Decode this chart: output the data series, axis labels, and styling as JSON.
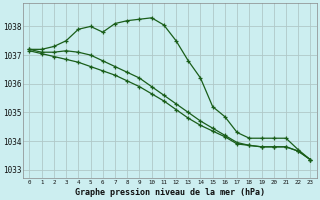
{
  "title": "Graphe pression niveau de la mer (hPa)",
  "background_color": "#cceef0",
  "grid_color": "#b0c8c8",
  "line_color": "#1a5e1a",
  "x_ticks": [
    0,
    1,
    2,
    3,
    4,
    5,
    6,
    7,
    8,
    9,
    10,
    11,
    12,
    13,
    14,
    15,
    16,
    17,
    18,
    19,
    20,
    21,
    22,
    23
  ],
  "ylim": [
    1032.7,
    1038.8
  ],
  "yticks": [
    1033,
    1034,
    1035,
    1036,
    1037,
    1038
  ],
  "figsize": [
    3.2,
    2.0
  ],
  "dpi": 100,
  "series": [
    [
      1037.2,
      1037.2,
      1037.3,
      1037.5,
      1037.9,
      1038.0,
      1037.8,
      1038.1,
      1038.2,
      1038.25,
      1038.3,
      1038.05,
      1037.5,
      1036.8,
      1036.2,
      1035.2,
      1034.85,
      1034.3,
      1034.1,
      1034.1,
      1034.1,
      1034.1,
      1033.7,
      1033.35
    ],
    [
      1037.2,
      1037.1,
      1037.1,
      1037.15,
      1037.1,
      1037.0,
      1036.8,
      1036.6,
      1036.4,
      1036.2,
      1035.9,
      1035.6,
      1035.3,
      1035.0,
      1034.7,
      1034.45,
      1034.2,
      1033.95,
      1033.85,
      1033.8,
      1033.8,
      1033.8,
      1033.65,
      1033.35
    ],
    [
      1037.15,
      1037.05,
      1036.95,
      1036.85,
      1036.75,
      1036.6,
      1036.45,
      1036.3,
      1036.1,
      1035.9,
      1035.65,
      1035.4,
      1035.1,
      1034.8,
      1034.55,
      1034.35,
      1034.15,
      1033.9,
      1033.85,
      1033.8,
      1033.8,
      1033.8,
      1033.65,
      1033.35
    ]
  ]
}
